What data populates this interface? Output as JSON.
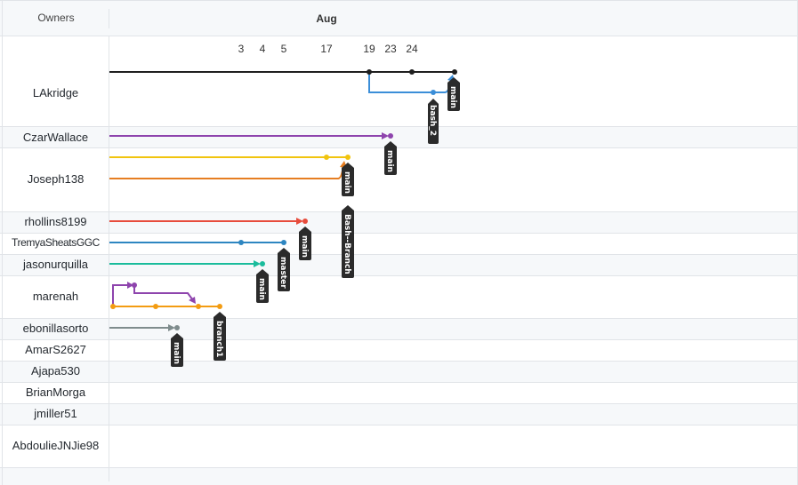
{
  "header": {
    "owners_label": "Owners",
    "month": "Aug"
  },
  "dates": [
    "3",
    "4",
    "5",
    "17",
    "19",
    "23",
    "24"
  ],
  "owners": [
    "LAkridge",
    "CzarWallace",
    "Joseph138",
    "rhollins8199",
    "TremyaSheatsGGC",
    "jasonurquilla",
    "marenah",
    "ebonillasorto",
    "AmarS2627",
    "Ajapa530",
    "BrianMorga",
    "jmiller51",
    "AbdoulieJNJie98"
  ],
  "branch_labels": {
    "lakridge_bash2": "bash_2",
    "lakridge_main": "main",
    "czarwallace_main": "main",
    "joseph138_main": "main",
    "joseph138_bash": "Bash--Branch",
    "rhollins_main": "main",
    "tremya_master": "master",
    "jason_main": "main",
    "marenah_branch1": "branch1",
    "ebonilla_main": "main"
  },
  "colors": {
    "black": "#1f1f1f",
    "blue": "#3b8ed8",
    "purple": "#8e44ad",
    "yellow": "#f1c40f",
    "orange": "#e67e22",
    "red": "#e74c3c",
    "steel": "#2e86c1",
    "teal": "#1abc9c",
    "gray": "#7f8c8d",
    "tag_bg": "#2b2b2b",
    "grid": "#e6e6e6",
    "alt_row": "#f6f8fa"
  }
}
